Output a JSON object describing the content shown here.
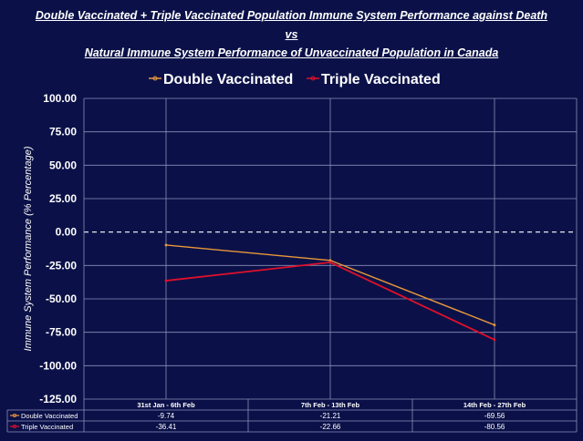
{
  "chart_data": {
    "type": "line",
    "title": [
      "Double Vaccinated + Triple Vaccinated Population Immune System Performance against Death",
      "vs",
      "Natural Immune System Performance of Unvaccinated Population in Canada"
    ],
    "ylabel": "Immune System Performance (% Percentage)",
    "xlabel": "",
    "ylim": [
      -125,
      100
    ],
    "yticks": [
      "100.00",
      "75.00",
      "50.00",
      "25.00",
      "0.00",
      "-25.00",
      "-50.00",
      "-75.00",
      "-100.00",
      "-125.00"
    ],
    "categories": [
      "31st Jan - 6th Feb",
      "7th Feb - 13th Feb",
      "14th Feb - 27th Feb"
    ],
    "series": [
      {
        "name": "Double Vaccinated",
        "values": [
          -9.74,
          -21.21,
          -69.56
        ],
        "labels": [
          "-9.74",
          "-21.21",
          "-69.56"
        ],
        "color": "#e8973a"
      },
      {
        "name": "Triple Vaccinated",
        "values": [
          -36.41,
          -22.66,
          -80.56
        ],
        "labels": [
          "-36.41",
          "-22.66",
          "-80.56"
        ],
        "color": "#e0102a"
      }
    ],
    "grid": true,
    "legend": "top",
    "data_table": true
  }
}
